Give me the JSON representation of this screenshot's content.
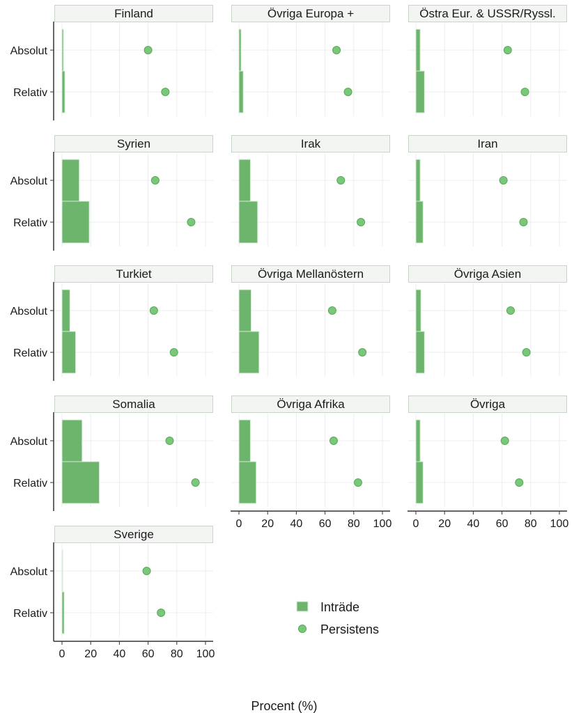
{
  "chart_data": {
    "type": "bar",
    "xlabel": "Procent (%)",
    "xlim": [
      0,
      100
    ],
    "xticks": [
      0,
      20,
      40,
      60,
      80,
      100
    ],
    "grid": true,
    "legend_position": "center-right",
    "categories": [
      "Absolut",
      "Relativ"
    ],
    "legend": {
      "bar_series": "Inträde",
      "dot_series": "Persistens"
    },
    "colors": {
      "bar_fill": "#6db56d",
      "bar_edge": "#d8ecd8",
      "dot_fill": "#79c879",
      "dot_edge": "#5aa95a",
      "header_fill": "#f3f5f3",
      "header_border": "#c9d4c9",
      "grid": "#ececec"
    },
    "panels": [
      {
        "title": "Finland",
        "intrade": {
          "Absolut": 1.0,
          "Relativ": 2.0
        },
        "persistens": {
          "Absolut": 60,
          "Relativ": 72
        }
      },
      {
        "title": "Övriga Europa +",
        "intrade": {
          "Absolut": 1.5,
          "Relativ": 3.0
        },
        "persistens": {
          "Absolut": 68,
          "Relativ": 76
        }
      },
      {
        "title": "Östra Eur. & USSR/Ryssl.",
        "intrade": {
          "Absolut": 3.0,
          "Relativ": 6.0
        },
        "persistens": {
          "Absolut": 64,
          "Relativ": 76
        }
      },
      {
        "title": "Syrien",
        "intrade": {
          "Absolut": 12.0,
          "Relativ": 19.0
        },
        "persistens": {
          "Absolut": 65,
          "Relativ": 90
        }
      },
      {
        "title": "Irak",
        "intrade": {
          "Absolut": 8.0,
          "Relativ": 13.0
        },
        "persistens": {
          "Absolut": 71,
          "Relativ": 85
        }
      },
      {
        "title": "Iran",
        "intrade": {
          "Absolut": 3.0,
          "Relativ": 5.0
        },
        "persistens": {
          "Absolut": 61,
          "Relativ": 75
        }
      },
      {
        "title": "Turkiet",
        "intrade": {
          "Absolut": 5.5,
          "Relativ": 9.5
        },
        "persistens": {
          "Absolut": 64,
          "Relativ": 78
        }
      },
      {
        "title": "Övriga Mellanöstern",
        "intrade": {
          "Absolut": 8.5,
          "Relativ": 14.0
        },
        "persistens": {
          "Absolut": 65,
          "Relativ": 86
        }
      },
      {
        "title": "Övriga Asien",
        "intrade": {
          "Absolut": 3.5,
          "Relativ": 6.0
        },
        "persistens": {
          "Absolut": 66,
          "Relativ": 77
        }
      },
      {
        "title": "Somalia",
        "intrade": {
          "Absolut": 14.0,
          "Relativ": 26.0
        },
        "persistens": {
          "Absolut": 75,
          "Relativ": 93
        }
      },
      {
        "title": "Övriga Afrika",
        "intrade": {
          "Absolut": 8.0,
          "Relativ": 12.0
        },
        "persistens": {
          "Absolut": 66,
          "Relativ": 83
        }
      },
      {
        "title": "Övriga",
        "intrade": {
          "Absolut": 3.0,
          "Relativ": 5.0
        },
        "persistens": {
          "Absolut": 62,
          "Relativ": 72
        }
      },
      {
        "title": "Sverige",
        "intrade": {
          "Absolut": 0.5,
          "Relativ": 1.5
        },
        "persistens": {
          "Absolut": 59,
          "Relativ": 69
        }
      }
    ]
  }
}
